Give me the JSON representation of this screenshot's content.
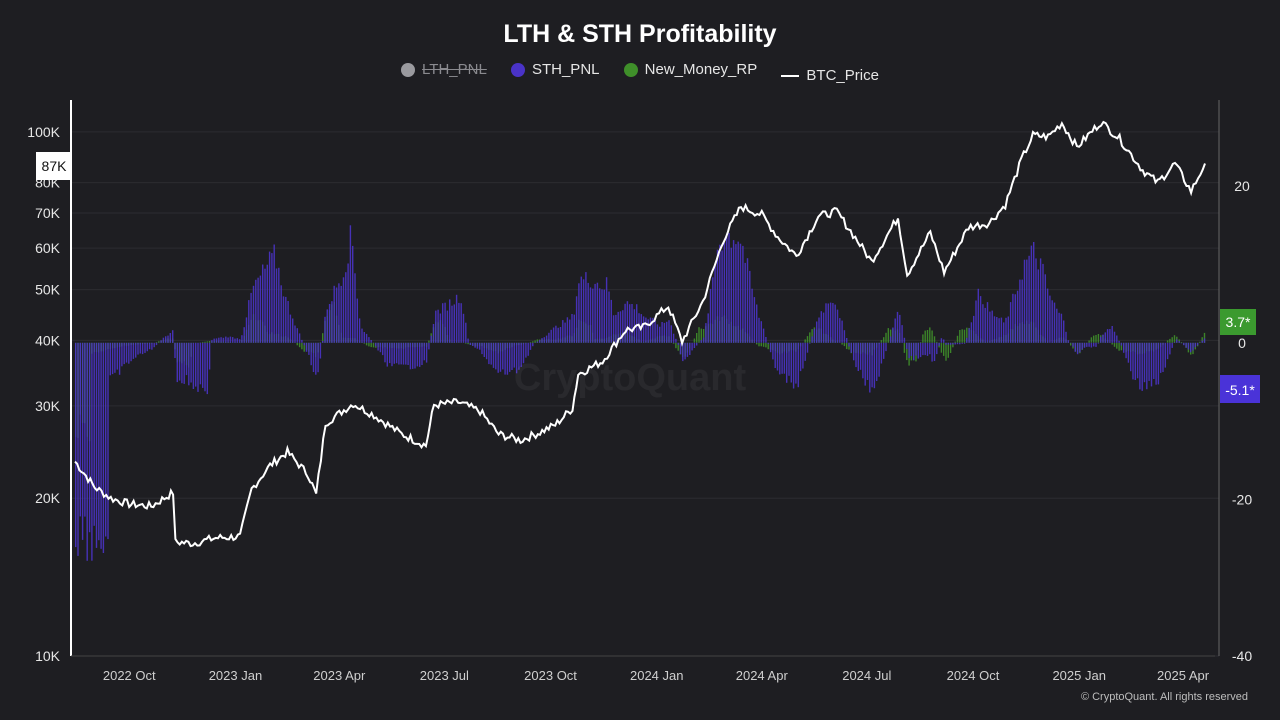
{
  "title": "LTH & STH Profitability",
  "legend": [
    {
      "name": "LTH_PNL",
      "color": "#9a9a9f",
      "active": false
    },
    {
      "name": "STH_PNL",
      "color": "#4a33c8",
      "active": true
    },
    {
      "name": "New_Money_RP",
      "color": "#3f8f2a",
      "active": true
    },
    {
      "name": "BTC_Price",
      "color": "#ffffff",
      "active": true
    }
  ],
  "footer": "© CryptoQuant. All rights reserved",
  "watermark": "CryptoQuant",
  "chart_data": {
    "type": "bar",
    "title": "LTH & STH Profitability",
    "x_ticks": [
      "2022 Oct",
      "2023 Jan",
      "2023 Apr",
      "2023 Jul",
      "2023 Oct",
      "2024 Jan",
      "2024 Apr",
      "2024 Jul",
      "2024 Oct",
      "2025 Jan",
      "2025 Apr"
    ],
    "left_axis": {
      "scale": "log",
      "ticks": [
        "10K",
        "20K",
        "30K",
        "40K",
        "50K",
        "60K",
        "70K",
        "80K",
        "100K"
      ],
      "range": [
        10000,
        115000
      ]
    },
    "right_axis": {
      "scale": "linear",
      "ticks": [
        "-40",
        "-20",
        "0",
        "20"
      ],
      "range": [
        -40,
        31
      ]
    },
    "price_marker": "87K",
    "sth_marker": "-5.1*",
    "newmoney_marker": "3.7*",
    "btc_price": {
      "name": "BTC_Price",
      "x": [
        "2022-08-15",
        "2022-09-01",
        "2022-09-15",
        "2022-10-01",
        "2022-10-20",
        "2022-11-08",
        "2022-11-10",
        "2022-11-25",
        "2022-12-15",
        "2023-01-05",
        "2023-01-15",
        "2023-01-31",
        "2023-02-15",
        "2023-03-05",
        "2023-03-12",
        "2023-03-20",
        "2023-04-13",
        "2023-05-01",
        "2023-05-25",
        "2023-06-15",
        "2023-06-22",
        "2023-07-13",
        "2023-08-01",
        "2023-08-17",
        "2023-09-05",
        "2023-09-20",
        "2023-10-05",
        "2023-10-20",
        "2023-10-25",
        "2023-11-15",
        "2023-12-05",
        "2023-12-20",
        "2024-01-11",
        "2024-01-23",
        "2024-02-10",
        "2024-02-28",
        "2024-03-14",
        "2024-04-01",
        "2024-04-15",
        "2024-05-01",
        "2024-05-20",
        "2024-06-05",
        "2024-06-25",
        "2024-07-05",
        "2024-07-28",
        "2024-08-05",
        "2024-08-25",
        "2024-09-06",
        "2024-09-27",
        "2024-10-15",
        "2024-10-29",
        "2024-11-12",
        "2024-11-22",
        "2024-12-05",
        "2024-12-17",
        "2024-12-30",
        "2025-01-20",
        "2025-02-05",
        "2025-02-25",
        "2025-03-10",
        "2025-03-25",
        "2025-04-08",
        "2025-04-20"
      ],
      "values": [
        23500,
        21000,
        20000,
        19500,
        19300,
        20500,
        16500,
        16400,
        16800,
        16900,
        20800,
        23100,
        24500,
        22200,
        20300,
        27800,
        30300,
        28800,
        26500,
        25200,
        30100,
        30500,
        29300,
        26500,
        25800,
        26600,
        27600,
        29700,
        34500,
        36500,
        41900,
        42300,
        46500,
        39800,
        47500,
        62500,
        72000,
        69500,
        63000,
        58000,
        69000,
        70500,
        61000,
        56600,
        68700,
        53500,
        64200,
        54000,
        65800,
        67000,
        72600,
        88500,
        98500,
        97800,
        104000,
        93500,
        104500,
        97000,
        84500,
        80000,
        87000,
        77000,
        87000
      ]
    },
    "series": [
      {
        "name": "STH_PNL",
        "color": "#4a33c8",
        "period": 30,
        "min": -25,
        "max": 22
      },
      {
        "name": "New_Money_RP",
        "color": "#3f8f2a",
        "period": 14,
        "min": -11,
        "max": 10
      }
    ]
  }
}
